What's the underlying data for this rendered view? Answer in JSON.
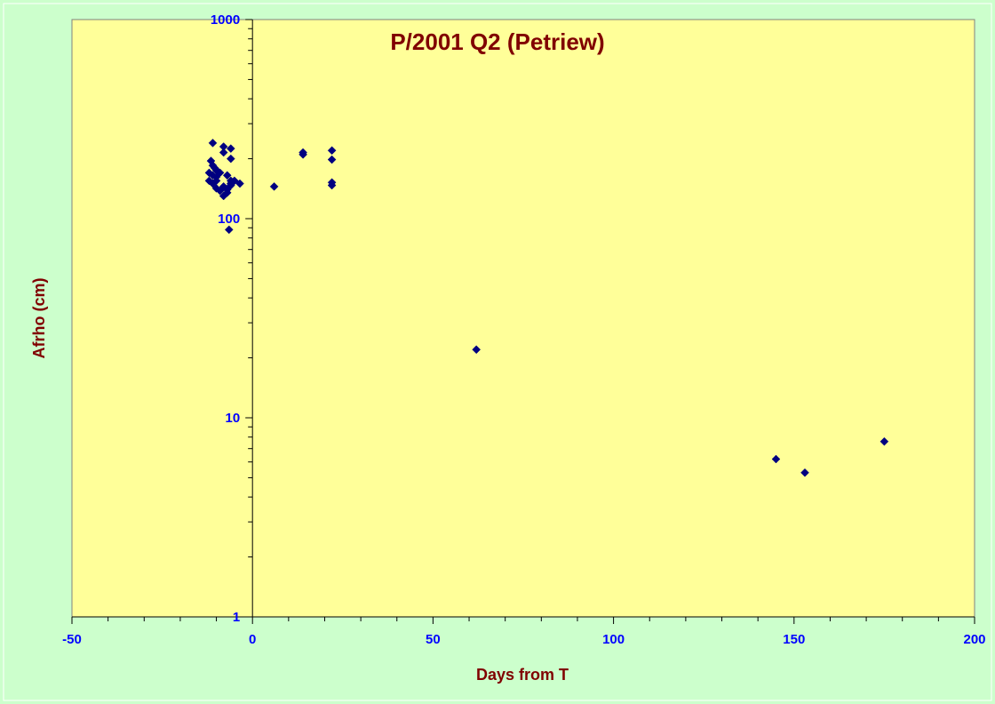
{
  "chart_data": {
    "type": "scatter",
    "title": "P/2001 Q2 (Petriew)",
    "xlabel": "Days from T",
    "ylabel": "Afrho (cm)",
    "xlim": [
      -50,
      200
    ],
    "ylim": [
      1,
      1000
    ],
    "y_scale": "log",
    "x_ticks": [
      -50,
      0,
      50,
      100,
      150,
      200
    ],
    "y_ticks": [
      1,
      10,
      100,
      1000
    ],
    "x_tick_labels": [
      "-50",
      "0",
      "50",
      "100",
      "150",
      "200"
    ],
    "y_tick_labels": [
      "1",
      "10",
      "100",
      "1000"
    ],
    "grid": false,
    "legend": "none",
    "colors": {
      "background": "#ccffcc",
      "plot_area": "#ffff99",
      "marker": "#000080",
      "tick_labels": "#0000ff",
      "titles": "#800000"
    },
    "series": [
      {
        "x": [
          -11,
          -8,
          -6,
          -8,
          -6,
          -6,
          -11.5,
          -11,
          -10.5,
          -10,
          -9.5,
          -12,
          -11,
          -10,
          -9,
          -12,
          -11,
          -10,
          -7,
          -6,
          -5,
          -3.5,
          -10,
          -9,
          -8,
          -7,
          -8,
          -6,
          -7,
          -6.5,
          6,
          14,
          14,
          22,
          22,
          22,
          22,
          62,
          145,
          153,
          175
        ],
        "y": [
          240,
          230,
          225,
          215,
          200,
          150,
          195,
          185,
          180,
          175,
          172,
          170,
          165,
          162,
          170,
          155,
          150,
          155,
          165,
          155,
          155,
          150,
          142,
          138,
          145,
          140,
          130,
          147,
          135,
          88,
          145,
          215,
          210,
          220,
          198,
          152,
          147,
          22,
          6.2,
          5.3,
          7.6
        ]
      }
    ]
  }
}
